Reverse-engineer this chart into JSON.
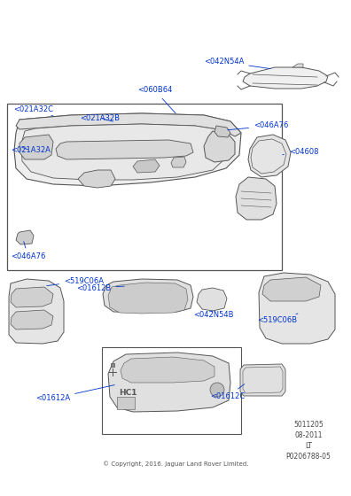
{
  "bg_color": "#ffffff",
  "line_color": "#555555",
  "label_color": "#0033cc",
  "label_fontsize": 6.0,
  "copyright_text": "© Copyright, 2016. Jaguar Land Rover Limited.",
  "ref_number": "5011205",
  "ref_date": "08-2011",
  "ref_lt": "LT",
  "ref_part": "P0206788-05"
}
